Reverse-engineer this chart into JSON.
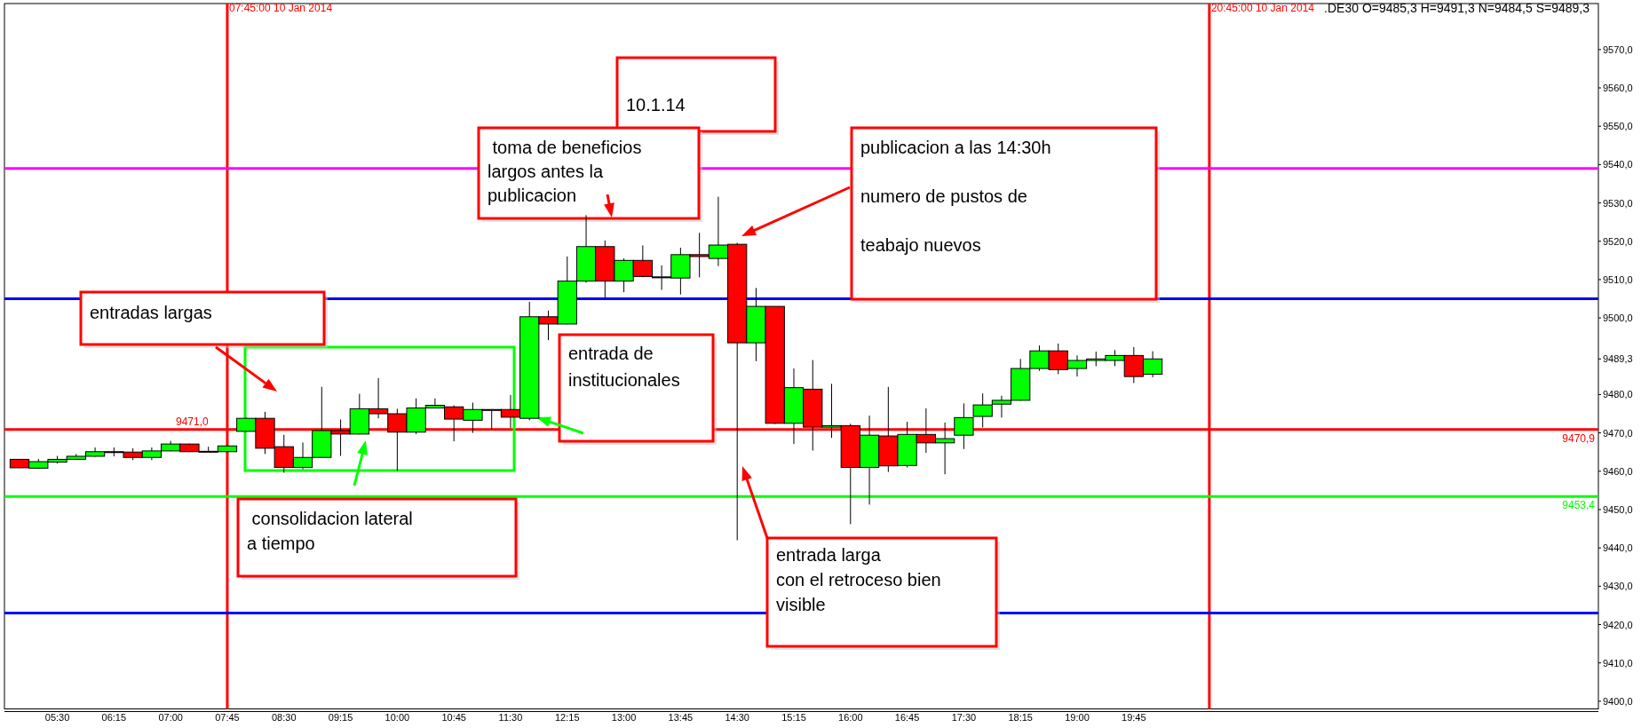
{
  "chart_data": {
    "type": "candlestick",
    "title": ".DE30 O=9485,3 H=9491,3 N=9484,5 S=9489,3",
    "x": [
      5,
      5.25,
      5.5,
      5.75,
      6,
      6.25,
      6.5,
      6.75,
      7,
      7.25,
      7.5,
      7.75,
      8,
      8.25,
      8.5,
      8.75,
      9,
      9.25,
      9.5,
      9.75,
      10,
      10.25,
      10.5,
      10.75,
      11,
      11.25,
      11.5,
      11.75,
      12,
      12.25,
      12.5,
      12.75,
      13,
      13.25,
      13.5,
      13.75,
      14,
      14.25,
      14.5,
      14.75,
      15,
      15.25,
      15.5,
      15.75,
      16,
      16.25,
      16.5,
      16.75,
      17,
      17.25,
      17.5,
      17.75,
      18,
      18.25,
      18.5,
      18.75,
      19,
      19.25,
      19.5,
      19.75,
      20
    ],
    "ohlc": [
      [
        9463.1,
        9463.2,
        9460.8,
        9460.9
      ],
      [
        9460.8,
        9463.2,
        9460.6,
        9462.5
      ],
      [
        9462.4,
        9464.0,
        9462.0,
        9463.1
      ],
      [
        9463.1,
        9464.5,
        9463.0,
        9463.9
      ],
      [
        9463.9,
        9466.2,
        9463.8,
        9465.1
      ],
      [
        9465.1,
        9466.2,
        9463.9,
        9465.0
      ],
      [
        9465.0,
        9466.0,
        9462.9,
        9463.6
      ],
      [
        9463.6,
        9466.2,
        9462.9,
        9465.3
      ],
      [
        9465.3,
        9467.9,
        9465.2,
        9467.1
      ],
      [
        9467.1,
        9467.2,
        9465.0,
        9465.1
      ],
      [
        9465.2,
        9466.4,
        9465.0,
        9465.1
      ],
      [
        9465.1,
        9466.7,
        9465.0,
        9466.6
      ],
      [
        9470.4,
        9474.0,
        9470.2,
        9473.8
      ],
      [
        9473.8,
        9475.5,
        9464.5,
        9466.0
      ],
      [
        9466.4,
        9469.5,
        9459.6,
        9461.0
      ],
      [
        9461.0,
        9467.5,
        9460.5,
        9463.6
      ],
      [
        9463.6,
        9482.0,
        9463.5,
        9470.6
      ],
      [
        9470.6,
        9473.5,
        9464.0,
        9469.7
      ],
      [
        9469.7,
        9480.2,
        9469.6,
        9476.3
      ],
      [
        9476.3,
        9484.3,
        9473.8,
        9475.0
      ],
      [
        9475.0,
        9476.3,
        9460.1,
        9470.2
      ],
      [
        9470.2,
        9479.0,
        9469.7,
        9476.5
      ],
      [
        9476.5,
        9479.0,
        9476.4,
        9477.2
      ],
      [
        9476.8,
        9477.2,
        9467.8,
        9473.6
      ],
      [
        9473.3,
        9477.9,
        9470.0,
        9476.1
      ],
      [
        9476.1,
        9476.2,
        9471.0,
        9476.0
      ],
      [
        9476.1,
        9479.9,
        9471.3,
        9474.1
      ],
      [
        9473.8,
        9504.2,
        9473.3,
        9500.3
      ],
      [
        9500.3,
        9501.9,
        9494.2,
        9498.4
      ],
      [
        9498.4,
        9516.0,
        9498.3,
        9509.6
      ],
      [
        9509.6,
        9526.8,
        9509.2,
        9518.6
      ],
      [
        9518.6,
        9520.2,
        9505.2,
        9509.6
      ],
      [
        9509.6,
        9515.5,
        9506.7,
        9515.0
      ],
      [
        9515.0,
        9518.9,
        9510.6,
        9510.8
      ],
      [
        9510.6,
        9513.7,
        9507.3,
        9510.7
      ],
      [
        9510.4,
        9518.3,
        9506.1,
        9516.5
      ],
      [
        9516.5,
        9522.2,
        9510.6,
        9516.0
      ],
      [
        9515.5,
        9531.6,
        9513.5,
        9519.0
      ],
      [
        9519.2,
        9519.6,
        9442.0,
        9493.5
      ],
      [
        9493.5,
        9507.8,
        9488.7,
        9503.0
      ],
      [
        9503.0,
        9503.0,
        9472.3,
        9472.5
      ],
      [
        9472.5,
        9486.8,
        9467.1,
        9481.8
      ],
      [
        9481.4,
        9489.0,
        9465.4,
        9471.5
      ],
      [
        9471.5,
        9482.8,
        9468.7,
        9471.9
      ],
      [
        9471.9,
        9472.4,
        9446.2,
        9461.0
      ],
      [
        9461.0,
        9474.5,
        9451.3,
        9469.4
      ],
      [
        9469.2,
        9482.0,
        9459.8,
        9461.4
      ],
      [
        9461.5,
        9472.9,
        9461.0,
        9469.6
      ],
      [
        9469.6,
        9476.4,
        9464.8,
        9467.4
      ],
      [
        9467.4,
        9472.7,
        9459.2,
        9468.5
      ],
      [
        9469.4,
        9477.7,
        9465.8,
        9474.0
      ],
      [
        9474.3,
        9480.3,
        9471.4,
        9477.3
      ],
      [
        9477.5,
        9479.7,
        9474.0,
        9478.5
      ],
      [
        9478.5,
        9489.3,
        9478.4,
        9486.8
      ],
      [
        9486.8,
        9492.8,
        9486.2,
        9491.4
      ],
      [
        9491.4,
        9493.3,
        9485.3,
        9486.5
      ],
      [
        9486.8,
        9490.2,
        9484.7,
        9488.9
      ],
      [
        9488.9,
        9491.2,
        9487.4,
        9489.3
      ],
      [
        9488.9,
        9491.6,
        9487.4,
        9490.2
      ],
      [
        9490.2,
        9492.4,
        9483.0,
        9484.7
      ],
      [
        9485.3,
        9491.3,
        9484.5,
        9489.3
      ]
    ],
    "colors": [
      "#ff0000",
      "#00ff00",
      "#00ff00",
      "#00ff00",
      "#00ff00",
      "#ff0000",
      "#ff0000",
      "#00ff00",
      "#00ff00",
      "#ff0000",
      "#ff0000",
      "#00ff00",
      "#00ff00",
      "#ff0000",
      "#ff0000",
      "#00ff00",
      "#00ff00",
      "#ff0000",
      "#00ff00",
      "#ff0000",
      "#ff0000",
      "#00ff00",
      "#00ff00",
      "#ff0000",
      "#00ff00",
      "#ff0000",
      "#ff0000",
      "#00ff00",
      "#ff0000",
      "#00ff00",
      "#00ff00",
      "#ff0000",
      "#00ff00",
      "#ff0000",
      "#00ff00",
      "#00ff00",
      "#ff0000",
      "#00ff00",
      "#ff0000",
      "#00ff00",
      "#ff0000",
      "#00ff00",
      "#ff0000",
      "#00ff00",
      "#ff0000",
      "#00ff00",
      "#ff0000",
      "#00ff00",
      "#ff0000",
      "#00ff00",
      "#00ff00",
      "#00ff00",
      "#00ff00",
      "#00ff00",
      "#00ff00",
      "#ff0000",
      "#00ff00",
      "#00ff00",
      "#00ff00",
      "#ff0000",
      "#00ff00"
    ],
    "xlim": [
      4.8,
      25.9
    ],
    "xticks": [
      {
        "value": 5.5,
        "label": "05:30"
      },
      {
        "value": 6.25,
        "label": "06:15"
      },
      {
        "value": 7,
        "label": "07:00"
      },
      {
        "value": 7.75,
        "label": "07:45"
      },
      {
        "value": 8.5,
        "label": "08:30"
      },
      {
        "value": 9.25,
        "label": "09:15"
      },
      {
        "value": 10,
        "label": "10:00"
      },
      {
        "value": 10.75,
        "label": "10:45"
      },
      {
        "value": 11.5,
        "label": "11:30"
      },
      {
        "value": 12.25,
        "label": "12:15"
      },
      {
        "value": 13,
        "label": "13:00"
      },
      {
        "value": 13.75,
        "label": "13:45"
      },
      {
        "value": 14.5,
        "label": "14:30"
      },
      {
        "value": 15.25,
        "label": "15:15"
      },
      {
        "value": 16,
        "label": "16:00"
      },
      {
        "value": 16.75,
        "label": "16:45"
      },
      {
        "value": 17.5,
        "label": "17:30"
      },
      {
        "value": 18.25,
        "label": "18:15"
      },
      {
        "value": 19,
        "label": "19:00"
      },
      {
        "value": 19.75,
        "label": "19:45"
      }
    ],
    "ylim": [
      9398,
      9582
    ],
    "yticks": [
      {
        "value": 9400,
        "label": "9400,0"
      },
      {
        "value": 9410,
        "label": "9410,0"
      },
      {
        "value": 9420,
        "label": "9420,0"
      },
      {
        "value": 9430,
        "label": "9430,0"
      },
      {
        "value": 9440,
        "label": "9440,0"
      },
      {
        "value": 9450,
        "label": "9450,0"
      },
      {
        "value": 9460,
        "label": "9460,0"
      },
      {
        "value": 9470,
        "label": "9470,0"
      },
      {
        "value": 9480,
        "label": "9480,0"
      },
      {
        "value": 9489.3,
        "label": "9489,3"
      },
      {
        "value": 9500,
        "label": "9500,0"
      },
      {
        "value": 9510,
        "label": "9510,0"
      },
      {
        "value": 9520,
        "label": "9520,0"
      },
      {
        "value": 9530,
        "label": "9530,0"
      },
      {
        "value": 9540,
        "label": "9540,0"
      },
      {
        "value": 9550,
        "label": "9550,0"
      },
      {
        "value": 9560,
        "label": "9560,0"
      },
      {
        "value": 9570,
        "label": "9570,0"
      }
    ],
    "ref_lines": [
      {
        "axis": "x",
        "value": 7.75,
        "color": "#ff0000"
      },
      {
        "axis": "x",
        "value": 20.75,
        "color": "#ff0000"
      },
      {
        "axis": "y",
        "value": 9539,
        "color": "#ff00ff"
      },
      {
        "axis": "y",
        "value": 9505,
        "color": "#0000ff"
      },
      {
        "axis": "y",
        "value": 9470.9,
        "label": "9470,9",
        "color": "#ff0000"
      },
      {
        "axis": "y",
        "value": 9453.4,
        "label": "9453,4",
        "color": "#00ff00"
      },
      {
        "axis": "y",
        "value": 9423,
        "color": "#0000ff"
      }
    ],
    "annotations": [
      "10.1.14",
      " toma de beneficios\nlargos antes la\npublicacion",
      "publicacion a las 14:30h\nnumero de pustos de\nteabajo nuevos",
      "entradas largas",
      "entrada de\ninstitucionales",
      " consolidacion lateral\na tiempo",
      "entrada larga\ncon el retroceso bien\nvisible",
      {
        "text": "9471,0",
        "x": 7.5,
        "y": 9471
      },
      {
        "text": "07:45:00 10 Jan 2014",
        "x": 7.75,
        "y": 9582
      },
      {
        "text": "20:45:00 10 Jan 2014",
        "x": 20.75,
        "y": 9582
      }
    ],
    "grid": false
  }
}
